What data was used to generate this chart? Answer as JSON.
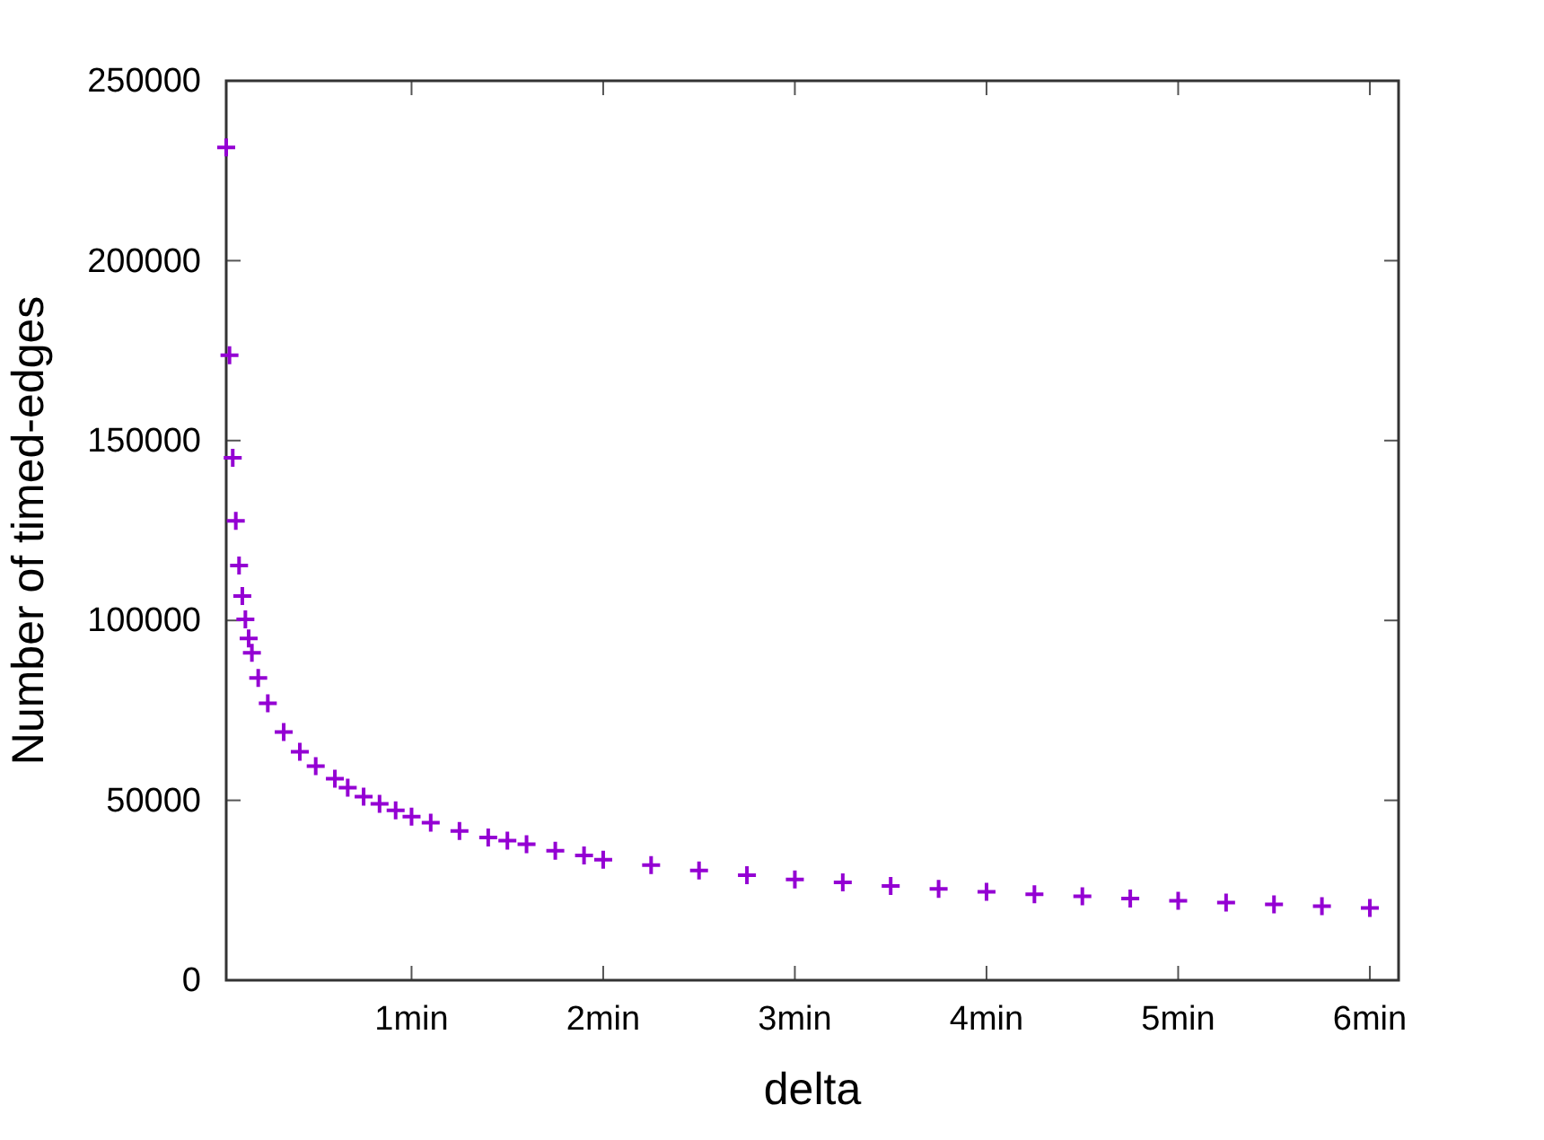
{
  "chart_data": {
    "type": "scatter",
    "xlabel": "delta",
    "ylabel": "Number of timed-edges",
    "marker": "cross",
    "grid": false,
    "xlim": [
      0.033,
      6.15
    ],
    "ylim": [
      0,
      250000
    ],
    "xticks": [
      {
        "value": 1,
        "label": "1min"
      },
      {
        "value": 2,
        "label": "2min"
      },
      {
        "value": 3,
        "label": "3min"
      },
      {
        "value": 4,
        "label": "4min"
      },
      {
        "value": 5,
        "label": "5min"
      },
      {
        "value": 6,
        "label": "6min"
      }
    ],
    "yticks": [
      0,
      50000,
      100000,
      150000,
      200000,
      250000
    ],
    "series": [
      {
        "color": "#9400d3",
        "x": [
          0.033,
          0.05,
          0.067,
          0.083,
          0.1,
          0.117,
          0.133,
          0.15,
          0.167,
          0.2,
          0.25,
          0.333,
          0.417,
          0.5,
          0.6,
          0.667,
          0.75,
          0.833,
          0.917,
          1.0,
          1.1,
          1.25,
          1.4,
          1.5,
          1.6,
          1.75,
          1.9,
          2.0,
          2.25,
          2.5,
          2.75,
          3.0,
          3.25,
          3.5,
          3.75,
          4.0,
          4.25,
          4.5,
          4.75,
          5.0,
          5.25,
          5.5,
          5.75,
          6.0
        ],
        "values": [
          231500,
          173700,
          145200,
          127700,
          115300,
          106800,
          100300,
          95000,
          91000,
          84000,
          77000,
          69000,
          63500,
          59500,
          56000,
          53500,
          51000,
          49000,
          47200,
          45500,
          43800,
          41500,
          39700,
          38800,
          37800,
          36000,
          34700,
          33500,
          32000,
          30500,
          29200,
          28000,
          27200,
          26200,
          25400,
          24600,
          23900,
          23300,
          22700,
          22100,
          21600,
          21100,
          20600,
          20100
        ]
      }
    ]
  }
}
